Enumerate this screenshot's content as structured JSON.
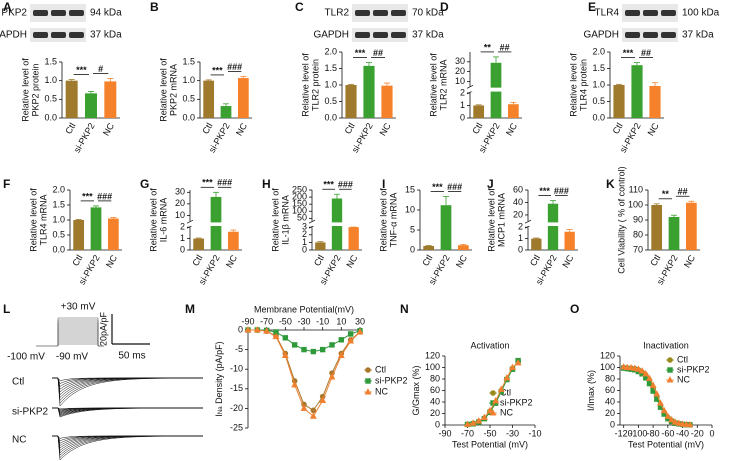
{
  "chart_data": [
    {
      "type": "bar",
      "panel": "A",
      "blot_labels": [
        "PKP2",
        "94 kDa",
        "GAPDH",
        "37 kDa"
      ],
      "ylabel": [
        "Relative level of",
        "PKP2 protein"
      ],
      "categories": [
        "Ctl",
        "si-PKP2",
        "NC"
      ],
      "values": [
        1.0,
        0.66,
        0.98
      ],
      "errors": [
        0.03,
        0.05,
        0.08
      ],
      "colors": [
        "#a07a2c",
        "#3aa030",
        "#f5822a"
      ],
      "ylim": [
        0,
        1.5
      ],
      "yticks": [
        {
          "value": 0,
          "label": "0.0"
        },
        {
          "value": 0.5,
          "label": "0.5"
        },
        {
          "value": 1,
          "label": "1.0"
        },
        {
          "value": 1.5,
          "label": "1.5"
        }
      ],
      "annotations": [
        "***",
        "#"
      ]
    },
    {
      "type": "bar",
      "panel": "B",
      "ylabel": [
        "Relative level of",
        "PKP2 mRNA"
      ],
      "categories": [
        "Ctl",
        "si-PKP2",
        "NC"
      ],
      "values": [
        1.0,
        0.32,
        1.07
      ],
      "errors": [
        0.02,
        0.06,
        0.04
      ],
      "colors": [
        "#a07a2c",
        "#3aa030",
        "#f5822a"
      ],
      "ylim": [
        0,
        1.5
      ],
      "yticks": [
        {
          "value": 0,
          "label": "0.0"
        },
        {
          "value": 0.5,
          "label": "0.5"
        },
        {
          "value": 1,
          "label": "1.0"
        },
        {
          "value": 1.5,
          "label": "1.5"
        }
      ],
      "annotations": [
        "***",
        "###"
      ]
    },
    {
      "type": "bar",
      "panel": "C",
      "blot_labels": [
        "TLR2",
        "70 kDa",
        "GAPDH",
        "37 kDa"
      ],
      "ylabel": [
        "Relative level of",
        "TLR2 protein"
      ],
      "categories": [
        "Ctl",
        "si-PKP2",
        "NC"
      ],
      "values": [
        1.0,
        1.58,
        0.98
      ],
      "errors": [
        0.02,
        0.1,
        0.08
      ],
      "colors": [
        "#a07a2c",
        "#3aa030",
        "#f5822a"
      ],
      "ylim": [
        0,
        2
      ],
      "yticks": [
        {
          "value": 0,
          "label": "0.0"
        },
        {
          "value": 0.5,
          "label": "0.5"
        },
        {
          "value": 1,
          "label": "1.0"
        },
        {
          "value": 1.5,
          "label": "1.5"
        },
        {
          "value": 2,
          "label": "2.0"
        }
      ],
      "annotations": [
        "***",
        "##"
      ]
    },
    {
      "type": "bar",
      "panel": "D",
      "ylabel": [
        "Relative level of",
        "TLR2 mRNA"
      ],
      "categories": [
        "Ctl",
        "si-PKP2",
        "NC"
      ],
      "values": [
        1.0,
        29,
        1.1
      ],
      "errors": [
        0.05,
        6,
        0.15
      ],
      "colors": [
        "#a07a2c",
        "#3aa030",
        "#f5822a"
      ],
      "ylim": [
        0,
        40
      ],
      "ybreak": [
        2,
        5
      ],
      "yticks": [
        0,
        1,
        2,
        10,
        20,
        30
      ],
      "annotations": [
        "**",
        "##"
      ]
    },
    {
      "type": "bar",
      "panel": "E",
      "blot_labels": [
        "TLR4",
        "100 kDa",
        "GAPDH",
        "37 kDa"
      ],
      "ylabel": [
        "Relative level of",
        "TLR4 protein"
      ],
      "categories": [
        "Ctl",
        "si-PKP2",
        "NC"
      ],
      "values": [
        1.0,
        1.6,
        0.97
      ],
      "errors": [
        0.02,
        0.08,
        0.1
      ],
      "colors": [
        "#a07a2c",
        "#3aa030",
        "#f5822a"
      ],
      "ylim": [
        0,
        2
      ],
      "yticks": [
        {
          "value": 0,
          "label": "0.0"
        },
        {
          "value": 0.5,
          "label": "0.5"
        },
        {
          "value": 1,
          "label": "1.0"
        },
        {
          "value": 1.5,
          "label": "1.5"
        },
        {
          "value": 2,
          "label": "2.0"
        }
      ],
      "annotations": [
        "***",
        "##"
      ]
    },
    {
      "type": "bar",
      "panel": "F",
      "ylabel": [
        "Relative level of",
        "TLR4 mRNA"
      ],
      "categories": [
        "Ctl",
        "si-PKP2",
        "NC"
      ],
      "values": [
        1.0,
        1.42,
        1.05
      ],
      "errors": [
        0.02,
        0.05,
        0.03
      ],
      "colors": [
        "#a07a2c",
        "#3aa030",
        "#f5822a"
      ],
      "ylim": [
        0,
        2
      ],
      "yticks": [
        {
          "value": 0,
          "label": "0.0"
        },
        {
          "value": 0.5,
          "label": "0.5"
        },
        {
          "value": 1,
          "label": "1.0"
        },
        {
          "value": 1.5,
          "label": "1.5"
        },
        {
          "value": 2,
          "label": "2.0"
        }
      ],
      "annotations": [
        "***",
        "###"
      ]
    },
    {
      "type": "bar",
      "panel": "G",
      "ylabel": [
        "Relative level of",
        "IL-6 mRNA"
      ],
      "categories": [
        "Ctl",
        "si-PKP2",
        "NC"
      ],
      "values": [
        1.0,
        26,
        1.6
      ],
      "errors": [
        0.05,
        4,
        0.15
      ],
      "colors": [
        "#a07a2c",
        "#3aa030",
        "#f5822a"
      ],
      "ylim": [
        0,
        32
      ],
      "ybreak": [
        2,
        5
      ],
      "yticks": [
        0,
        1,
        2,
        10,
        20,
        30
      ],
      "annotations": [
        "***",
        "###"
      ]
    },
    {
      "type": "bar",
      "panel": "H",
      "ylabel": [
        "Relative level of",
        "IL-1β mRNA"
      ],
      "categories": [
        "Ctl",
        "si-PKP2",
        "NC"
      ],
      "values": [
        1.0,
        190,
        3.2
      ],
      "errors": [
        0.1,
        30,
        0.4
      ],
      "colors": [
        "#a07a2c",
        "#3aa030",
        "#f5822a"
      ],
      "ylim": [
        0,
        250
      ],
      "ybreak": [
        3,
        30
      ],
      "yticks": [
        0,
        1,
        2,
        3,
        50,
        100,
        150,
        200,
        250
      ],
      "annotations": [
        "***",
        "###"
      ]
    },
    {
      "type": "bar",
      "panel": "I",
      "ylabel": [
        "Relative level of",
        "TNF-α mRNA"
      ],
      "categories": [
        "Ctl",
        "si-PKP2",
        "NC"
      ],
      "values": [
        1.0,
        11.2,
        1.2
      ],
      "errors": [
        0.1,
        2.2,
        0.2
      ],
      "colors": [
        "#a07a2c",
        "#3aa030",
        "#f5822a"
      ],
      "ylim": [
        0,
        15
      ],
      "yticks": [
        0,
        5,
        10,
        15
      ],
      "annotations": [
        "***",
        "###"
      ]
    },
    {
      "type": "bar",
      "panel": "J",
      "ylabel": [
        "Relative level of",
        "MCP1 mRNA"
      ],
      "categories": [
        "Ctl",
        "si-PKP2",
        "NC"
      ],
      "values": [
        1.0,
        38,
        1.6
      ],
      "errors": [
        0.05,
        5,
        0.2
      ],
      "colors": [
        "#a07a2c",
        "#3aa030",
        "#f5822a"
      ],
      "ylim": [
        0,
        60
      ],
      "ybreak": [
        2,
        10
      ],
      "yticks": [
        0,
        1,
        2,
        20,
        40,
        60
      ],
      "annotations": [
        "***",
        "###"
      ]
    },
    {
      "type": "bar",
      "panel": "K",
      "ylabel": [
        "Cell Viability ( % of control)"
      ],
      "categories": [
        "Ctl",
        "si-PKP2",
        "NC"
      ],
      "values": [
        100,
        92,
        101.5
      ],
      "errors": [
        0.8,
        1.2,
        1.0
      ],
      "colors": [
        "#a07a2c",
        "#3aa030",
        "#f5822a"
      ],
      "ylim": [
        70,
        110
      ],
      "yticks": [
        70,
        80,
        90,
        100,
        110
      ],
      "annotations": [
        "**",
        "##"
      ]
    },
    {
      "type": "traces",
      "panel": "L",
      "protocol_labels": [
        "+30 mV",
        "-100 mV",
        "-90 mV"
      ],
      "scale_labels": [
        "20pA/pF",
        "50 ms"
      ],
      "groups": [
        "Ctl",
        "si-PKP2",
        "NC"
      ]
    },
    {
      "type": "line",
      "panel": "M",
      "title": "Membrane Potential(mV)",
      "ylabel": [
        "I",
        "Na",
        " Density (pA/pF)"
      ],
      "xaxis_position": "top",
      "legend": "right",
      "x": [
        -90,
        -80,
        -70,
        -60,
        -50,
        -40,
        -30,
        -20,
        -10,
        0,
        10,
        20,
        30
      ],
      "series": [
        {
          "name": "Ctl",
          "color": "#a9782d",
          "marker": "circle",
          "values": [
            0,
            0,
            -0.3,
            -1.5,
            -6,
            -13,
            -19,
            -20.5,
            -17,
            -11,
            -6,
            -2.5,
            -0.5
          ]
        },
        {
          "name": "si-PKP2",
          "color": "#2e9a3a",
          "marker": "square",
          "values": [
            0,
            0,
            -0.1,
            -0.5,
            -2,
            -3.8,
            -5,
            -5.5,
            -5,
            -3.8,
            -2.5,
            -1,
            -0.2
          ]
        },
        {
          "name": "NC",
          "color": "#f08030",
          "marker": "triangle",
          "values": [
            0,
            0,
            -0.3,
            -1.7,
            -6.5,
            -14,
            -20,
            -22,
            -18,
            -12,
            -6.5,
            -2.8,
            -0.5
          ]
        }
      ],
      "xlim": [
        -90,
        30
      ],
      "xticks": [
        -90,
        -70,
        -50,
        -30,
        -10,
        10,
        30
      ],
      "ylim": [
        -25,
        0
      ],
      "yticks": [
        0,
        -5,
        -10,
        -15,
        -20,
        -25
      ]
    },
    {
      "type": "line",
      "panel": "N",
      "title": "Activation",
      "xlabel": "Test Potential (mV)",
      "ylabel": [
        "G/Gmax (%)"
      ],
      "legend": "lower right",
      "x": [
        -70,
        -65,
        -60,
        -55,
        -50,
        -45,
        -40,
        -35,
        -30,
        -25
      ],
      "series": [
        {
          "name": "Ctl",
          "color": "#9a8a1a",
          "marker": "circle",
          "values": [
            1,
            3,
            6,
            12,
            24,
            40,
            60,
            80,
            98,
            110
          ]
        },
        {
          "name": "si-PKP2",
          "color": "#2e9a3a",
          "marker": "square",
          "values": [
            1,
            2,
            5,
            11,
            22,
            38,
            58,
            79,
            97,
            112
          ]
        },
        {
          "name": "NC",
          "color": "#f08030",
          "marker": "triangle",
          "values": [
            1,
            3,
            7,
            13,
            25,
            42,
            62,
            82,
            100,
            108
          ]
        }
      ],
      "xlim": [
        -90,
        -10
      ],
      "xticks": [
        -90,
        -70,
        -50,
        -30,
        -10
      ],
      "ylim": [
        0,
        120
      ],
      "yticks": [
        0,
        20,
        40,
        60,
        80,
        100,
        120
      ]
    },
    {
      "type": "line",
      "panel": "O",
      "title": "Inactivation",
      "xlabel": "Test Potential (mV)",
      "ylabel": [
        "I/Imax (%)"
      ],
      "legend": "upper right",
      "x": [
        -120,
        -115,
        -110,
        -105,
        -100,
        -95,
        -90,
        -85,
        -80,
        -75,
        -70,
        -65,
        -60,
        -55,
        -50,
        -45,
        -40,
        -35,
        -30
      ],
      "series": [
        {
          "name": "Ctl",
          "color": "#9a8a1a",
          "marker": "circle",
          "values": [
            100,
            99,
            99,
            98,
            96,
            92,
            87,
            78,
            65,
            50,
            35,
            22,
            13,
            8,
            4,
            2,
            1,
            0.7,
            0.4
          ]
        },
        {
          "name": "si-PKP2",
          "color": "#2e9a3a",
          "marker": "square",
          "values": [
            99,
            98,
            97,
            96,
            93,
            89,
            82,
            72,
            59,
            45,
            31,
            19,
            11,
            6,
            3,
            2,
            1,
            0.5,
            0.3
          ]
        },
        {
          "name": "NC",
          "color": "#f08030",
          "marker": "triangle",
          "values": [
            101,
            100,
            99.5,
            98.5,
            97,
            94,
            89,
            81,
            69,
            54,
            38,
            25,
            15,
            9,
            5,
            3,
            1.5,
            0.8,
            0.5
          ]
        }
      ],
      "xlim": [
        -125,
        0
      ],
      "xticks": [
        -120,
        -100,
        -80,
        -60,
        -40,
        -20,
        0
      ],
      "ylim": [
        0,
        120
      ],
      "yticks": [
        0,
        20,
        40,
        60,
        80,
        100,
        120
      ]
    }
  ]
}
